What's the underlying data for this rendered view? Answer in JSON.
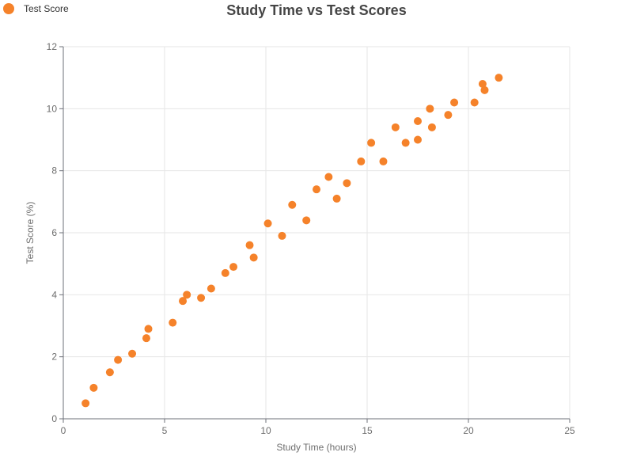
{
  "chart_data": {
    "type": "scatter",
    "title": "Study Time vs Test Scores",
    "xlabel": "Study Time (hours)",
    "ylabel": "Test Score (%)",
    "xlim": [
      0,
      25
    ],
    "ylim": [
      0,
      12
    ],
    "xticks": [
      "0",
      "5",
      "10",
      "15",
      "20",
      "25"
    ],
    "yticks": [
      "0",
      "2",
      "4",
      "6",
      "8",
      "10",
      "12"
    ],
    "grid": true,
    "legend_position": "top-left",
    "series": [
      {
        "name": "Test Score",
        "color": "#f5822a",
        "points": [
          [
            1.1,
            0.5
          ],
          [
            1.5,
            1.0
          ],
          [
            2.3,
            1.5
          ],
          [
            2.7,
            1.9
          ],
          [
            3.4,
            2.1
          ],
          [
            4.1,
            2.6
          ],
          [
            4.2,
            2.9
          ],
          [
            5.4,
            3.1
          ],
          [
            5.9,
            3.8
          ],
          [
            6.1,
            4.0
          ],
          [
            6.8,
            3.9
          ],
          [
            7.3,
            4.2
          ],
          [
            8.0,
            4.7
          ],
          [
            8.4,
            4.9
          ],
          [
            9.2,
            5.6
          ],
          [
            9.4,
            5.2
          ],
          [
            10.1,
            6.3
          ],
          [
            10.8,
            5.9
          ],
          [
            11.3,
            6.9
          ],
          [
            12.0,
            6.4
          ],
          [
            12.5,
            7.4
          ],
          [
            13.1,
            7.8
          ],
          [
            13.5,
            7.1
          ],
          [
            14.0,
            7.6
          ],
          [
            14.7,
            8.3
          ],
          [
            15.2,
            8.9
          ],
          [
            15.8,
            8.3
          ],
          [
            16.4,
            9.4
          ],
          [
            16.9,
            8.9
          ],
          [
            17.5,
            9.0
          ],
          [
            17.5,
            9.6
          ],
          [
            18.1,
            10.0
          ],
          [
            18.2,
            9.4
          ],
          [
            19.0,
            9.8
          ],
          [
            19.3,
            10.2
          ],
          [
            20.3,
            10.2
          ],
          [
            20.7,
            10.8
          ],
          [
            20.8,
            10.6
          ],
          [
            21.5,
            11.0
          ]
        ]
      }
    ]
  }
}
